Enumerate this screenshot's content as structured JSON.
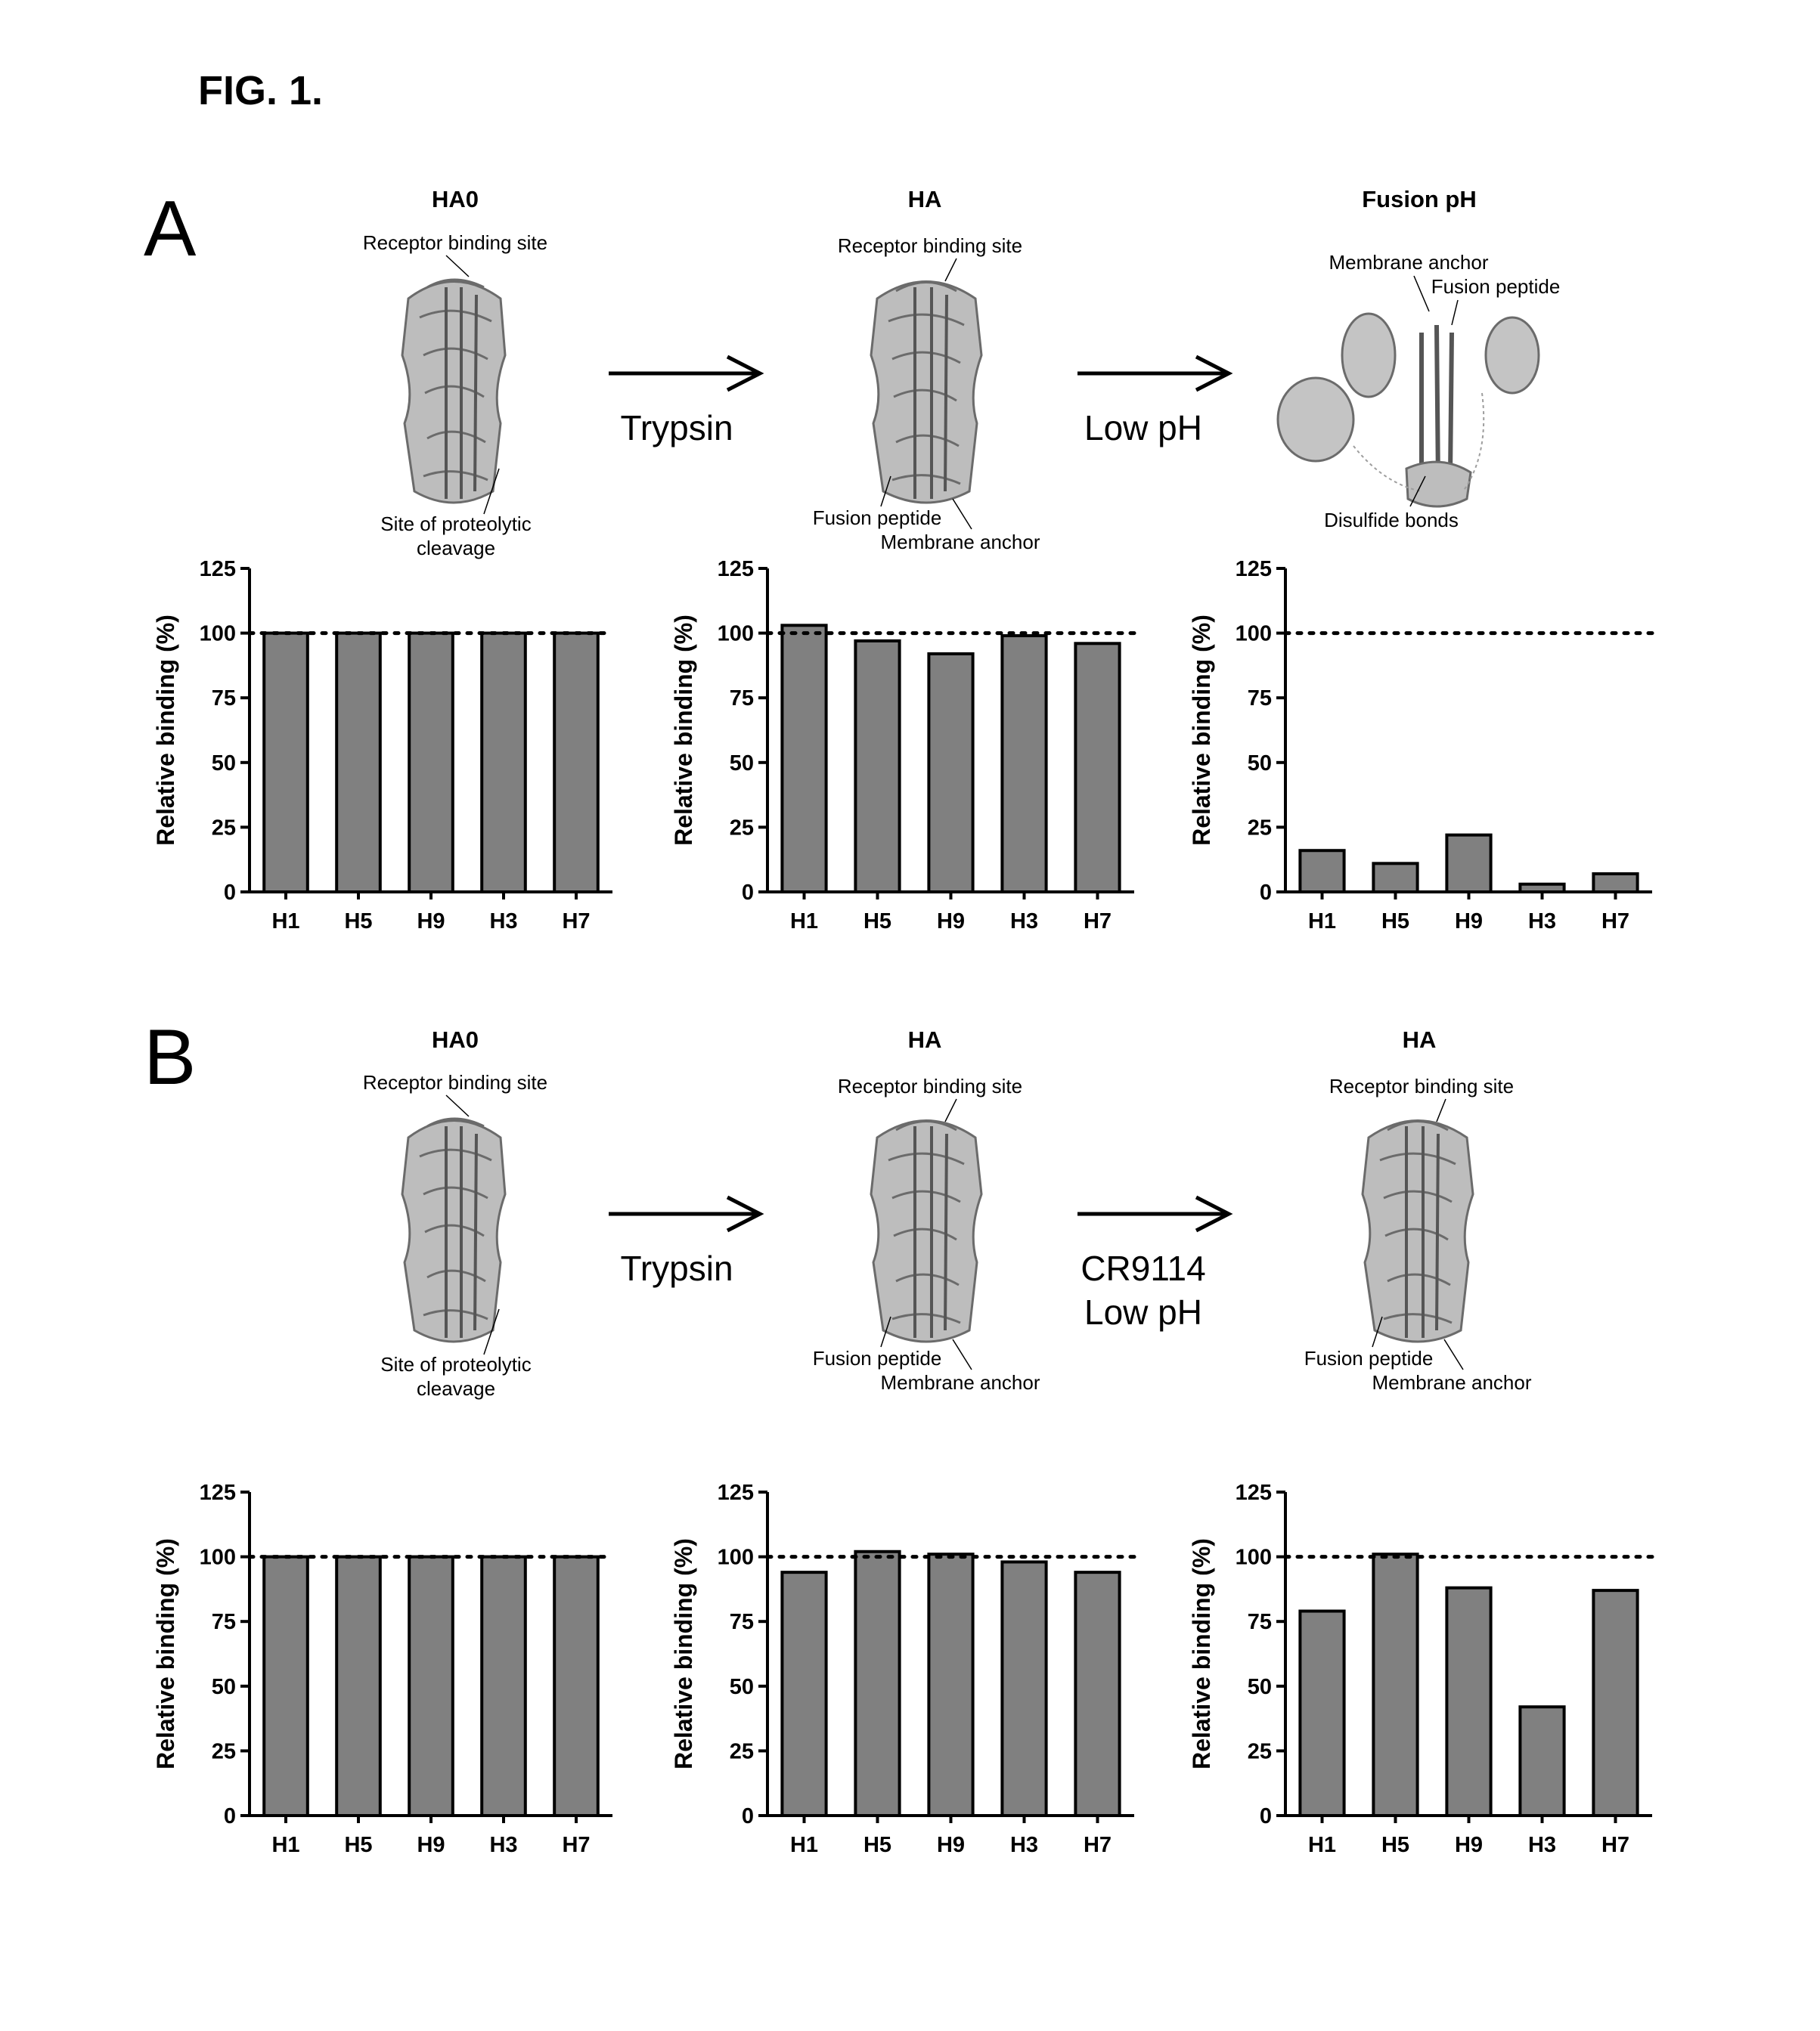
{
  "figure": {
    "title": "FIG. 1."
  },
  "colors": {
    "bar_fill": "#808080",
    "ink": "#000000",
    "protein": "#8a8a8a"
  },
  "panels": [
    {
      "label": "A",
      "structures": [
        {
          "title": "HA0",
          "annotations": [
            "Receptor binding site",
            "Site of proteolytic",
            "cleavage"
          ]
        },
        {
          "title": "HA",
          "annotations": [
            "Receptor binding site",
            "Fusion peptide",
            "Membrane anchor"
          ]
        },
        {
          "title": "Fusion pH",
          "annotations": [
            "Membrane anchor",
            "Fusion peptide",
            "Disulfide bonds"
          ]
        }
      ],
      "arrows": [
        {
          "lines": [
            "Trypsin"
          ]
        },
        {
          "lines": [
            "Low pH"
          ]
        }
      ]
    },
    {
      "label": "B",
      "structures": [
        {
          "title": "HA0",
          "annotations": [
            "Receptor binding site",
            "Site of proteolytic",
            "cleavage"
          ]
        },
        {
          "title": "HA",
          "annotations": [
            "Receptor binding site",
            "Fusion peptide",
            "Membrane anchor"
          ]
        },
        {
          "title": "HA",
          "annotations": [
            "Receptor binding site",
            "Fusion peptide",
            "Membrane anchor"
          ]
        }
      ],
      "arrows": [
        {
          "lines": [
            "Trypsin"
          ]
        },
        {
          "lines": [
            "CR9114",
            "Low pH"
          ]
        }
      ]
    }
  ],
  "chart_data": [
    {
      "type": "bar",
      "panel": "A",
      "categories": [
        "H1",
        "H5",
        "H9",
        "H3",
        "H7"
      ],
      "values": [
        100,
        100,
        100,
        100,
        100
      ],
      "ylabel": "Relative binding (%)",
      "ylim": [
        0,
        125
      ],
      "yticks": [
        0,
        25,
        50,
        75,
        100,
        125
      ],
      "reference_line": 100
    },
    {
      "type": "bar",
      "panel": "A",
      "categories": [
        "H1",
        "H5",
        "H9",
        "H3",
        "H7"
      ],
      "values": [
        103,
        97,
        92,
        99,
        96
      ],
      "ylabel": "Relative binding (%)",
      "ylim": [
        0,
        125
      ],
      "yticks": [
        0,
        25,
        50,
        75,
        100,
        125
      ],
      "reference_line": 100
    },
    {
      "type": "bar",
      "panel": "A",
      "categories": [
        "H1",
        "H5",
        "H9",
        "H3",
        "H7"
      ],
      "values": [
        16,
        11,
        22,
        3,
        7
      ],
      "ylabel": "Relative binding (%)",
      "ylim": [
        0,
        125
      ],
      "yticks": [
        0,
        25,
        50,
        75,
        100,
        125
      ],
      "reference_line": 100
    },
    {
      "type": "bar",
      "panel": "B",
      "categories": [
        "H1",
        "H5",
        "H9",
        "H3",
        "H7"
      ],
      "values": [
        100,
        100,
        100,
        100,
        100
      ],
      "ylabel": "Relative binding (%)",
      "ylim": [
        0,
        125
      ],
      "yticks": [
        0,
        25,
        50,
        75,
        100,
        125
      ],
      "reference_line": 100
    },
    {
      "type": "bar",
      "panel": "B",
      "categories": [
        "H1",
        "H5",
        "H9",
        "H3",
        "H7"
      ],
      "values": [
        94,
        102,
        101,
        98,
        94
      ],
      "ylabel": "Relative binding (%)",
      "ylim": [
        0,
        125
      ],
      "yticks": [
        0,
        25,
        50,
        75,
        100,
        125
      ],
      "reference_line": 100
    },
    {
      "type": "bar",
      "panel": "B",
      "categories": [
        "H1",
        "H5",
        "H9",
        "H3",
        "H7"
      ],
      "values": [
        79,
        101,
        88,
        42,
        87
      ],
      "ylabel": "Relative binding (%)",
      "ylim": [
        0,
        125
      ],
      "yticks": [
        0,
        25,
        50,
        75,
        100,
        125
      ],
      "reference_line": 100
    }
  ]
}
